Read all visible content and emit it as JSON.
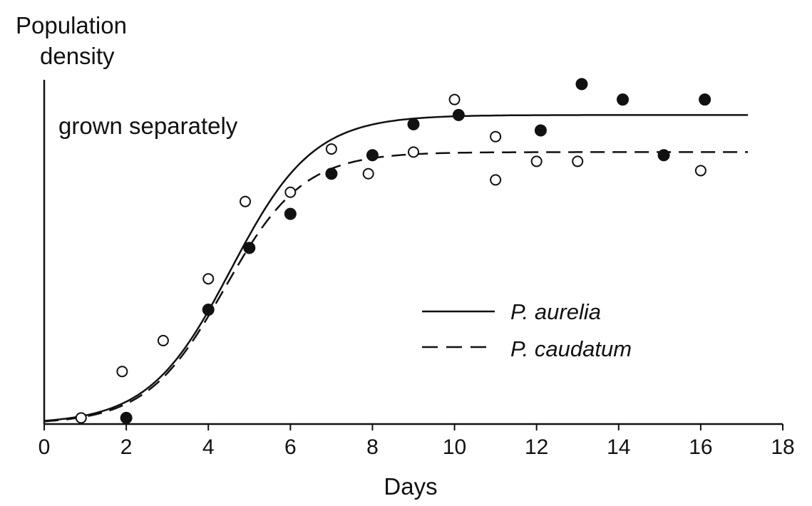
{
  "chart_data": {
    "type": "line",
    "ylabel": [
      "Population",
      "density"
    ],
    "xlabel": "Days",
    "annotation": "grown separately",
    "xlim": [
      0,
      18
    ],
    "ylim": [
      0,
      1.1
    ],
    "xticks": [
      "0",
      "2",
      "4",
      "6",
      "8",
      "10",
      "12",
      "14",
      "16",
      "18"
    ],
    "grid": false,
    "legend_position": "center-right",
    "series": [
      {
        "name": "P. aurelia",
        "line_style": "solid",
        "marker": "filled-circle",
        "color": "#111111",
        "points": [
          {
            "x": 2.0,
            "y": 0.02
          },
          {
            "x": 4.0,
            "y": 0.37
          },
          {
            "x": 5.0,
            "y": 0.57
          },
          {
            "x": 6.0,
            "y": 0.68
          },
          {
            "x": 7.0,
            "y": 0.81
          },
          {
            "x": 8.0,
            "y": 0.87
          },
          {
            "x": 9.0,
            "y": 0.97
          },
          {
            "x": 10.1,
            "y": 1.0
          },
          {
            "x": 12.1,
            "y": 0.95
          },
          {
            "x": 13.1,
            "y": 1.1
          },
          {
            "x": 14.1,
            "y": 1.05
          },
          {
            "x": 15.1,
            "y": 0.87
          },
          {
            "x": 16.1,
            "y": 1.05
          }
        ],
        "curve": {
          "K": 1.0,
          "r": 1.0,
          "t0": 4.55
        }
      },
      {
        "name": "P. caudatum",
        "line_style": "dashed",
        "marker": "open-circle",
        "color": "#111111",
        "points": [
          {
            "x": 0.9,
            "y": 0.02
          },
          {
            "x": 1.9,
            "y": 0.17
          },
          {
            "x": 2.9,
            "y": 0.27
          },
          {
            "x": 4.0,
            "y": 0.47
          },
          {
            "x": 4.9,
            "y": 0.72
          },
          {
            "x": 6.0,
            "y": 0.75
          },
          {
            "x": 7.0,
            "y": 0.89
          },
          {
            "x": 7.9,
            "y": 0.81
          },
          {
            "x": 9.0,
            "y": 0.88
          },
          {
            "x": 10.0,
            "y": 1.05
          },
          {
            "x": 11.0,
            "y": 0.93
          },
          {
            "x": 11.0,
            "y": 0.79
          },
          {
            "x": 12.0,
            "y": 0.85
          },
          {
            "x": 13.0,
            "y": 0.85
          },
          {
            "x": 16.0,
            "y": 0.82
          }
        ],
        "curve": {
          "K": 0.88,
          "r": 1.05,
          "t0": 4.4
        }
      }
    ]
  }
}
